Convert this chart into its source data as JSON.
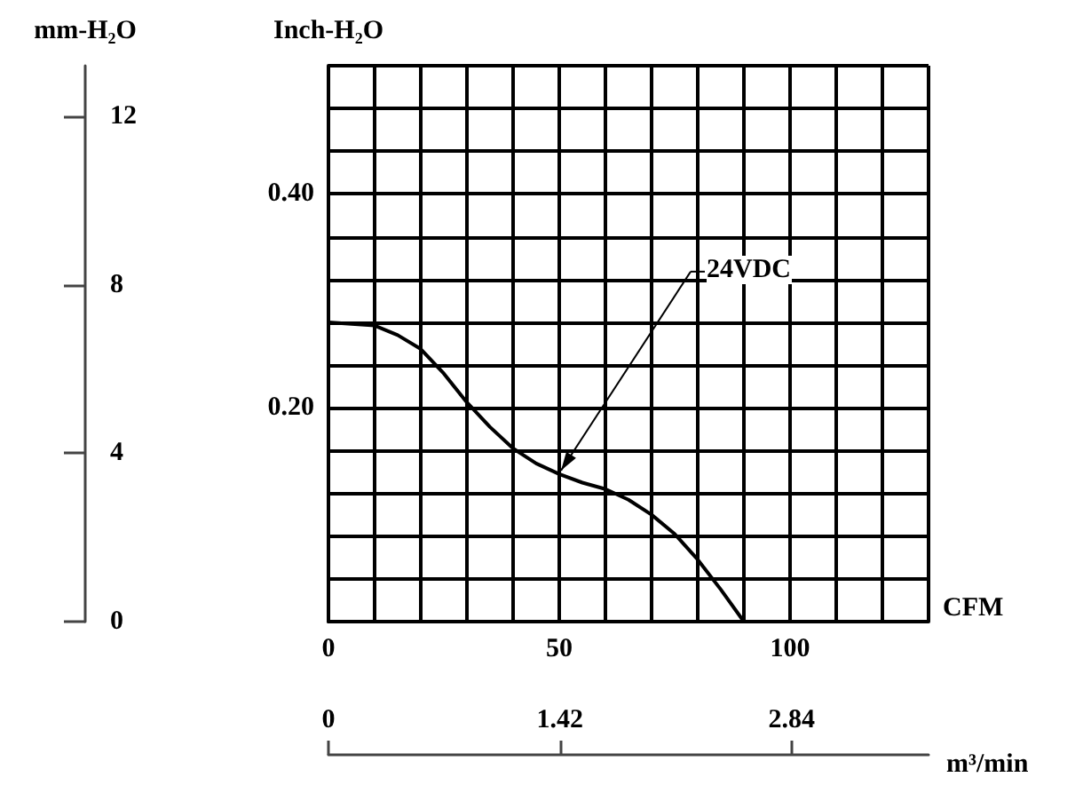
{
  "chart_data": {
    "type": "line",
    "xlabel": "CFM",
    "ylabel": "Inch-H₂O",
    "y2label": "mm-H₂O",
    "x2label": "m³/min",
    "x": [
      0,
      10,
      15,
      20,
      25,
      30,
      35,
      40,
      45,
      50,
      55,
      60,
      65,
      70,
      75,
      80,
      85,
      90
    ],
    "series": [
      {
        "color": "#000000",
        "values": [
          0.28,
          0.277,
          0.268,
          0.255,
          0.232,
          0.205,
          0.182,
          0.162,
          0.148,
          0.138,
          0.13,
          0.124,
          0.114,
          0.1,
          0.082,
          0.058,
          0.03,
          0
        ]
      }
    ],
    "xlim": [
      0,
      130
    ],
    "xticks": [
      0,
      {
        "value": 10,
        "label": null
      },
      {
        "value": 20,
        "label": null
      },
      {
        "value": 30,
        "label": null
      },
      {
        "value": 40,
        "label": null
      },
      50,
      {
        "value": 60,
        "label": null
      },
      {
        "value": 70,
        "label": null
      },
      {
        "value": 80,
        "label": null
      },
      {
        "value": 90,
        "label": null
      },
      100,
      {
        "value": 110,
        "label": null
      },
      {
        "value": 120,
        "label": null
      },
      {
        "value": 130,
        "label": null
      }
    ],
    "ylim": [
      0,
      0.52
    ],
    "yticks": [
      {
        "value": 0,
        "label": null
      },
      {
        "value": 0.04,
        "label": null
      },
      {
        "value": 0.08,
        "label": null
      },
      {
        "value": 0.12,
        "label": null
      },
      {
        "value": 0.16,
        "label": null
      },
      {
        "value": 0.2,
        "label": "0.20"
      },
      {
        "value": 0.24,
        "label": null
      },
      {
        "value": 0.28,
        "label": null
      },
      {
        "value": 0.32,
        "label": null
      },
      {
        "value": 0.36,
        "label": null
      },
      {
        "value": 0.4,
        "label": "0.40"
      },
      {
        "value": 0.44,
        "label": null
      },
      {
        "value": 0.48,
        "label": null
      },
      {
        "value": 0.52,
        "label": null
      }
    ],
    "y2lim": [
      0,
      13.21
    ],
    "y2ticks": [
      0,
      4,
      8,
      12
    ],
    "x2lim": [
      0,
      3.68
    ],
    "x2ticks": [
      0,
      1.42,
      2.84
    ],
    "grid": true,
    "marker": "none",
    "line_style": "solid",
    "annotations": [
      {
        "text": "24VDC",
        "x": 50,
        "y": 0.138
      }
    ]
  }
}
